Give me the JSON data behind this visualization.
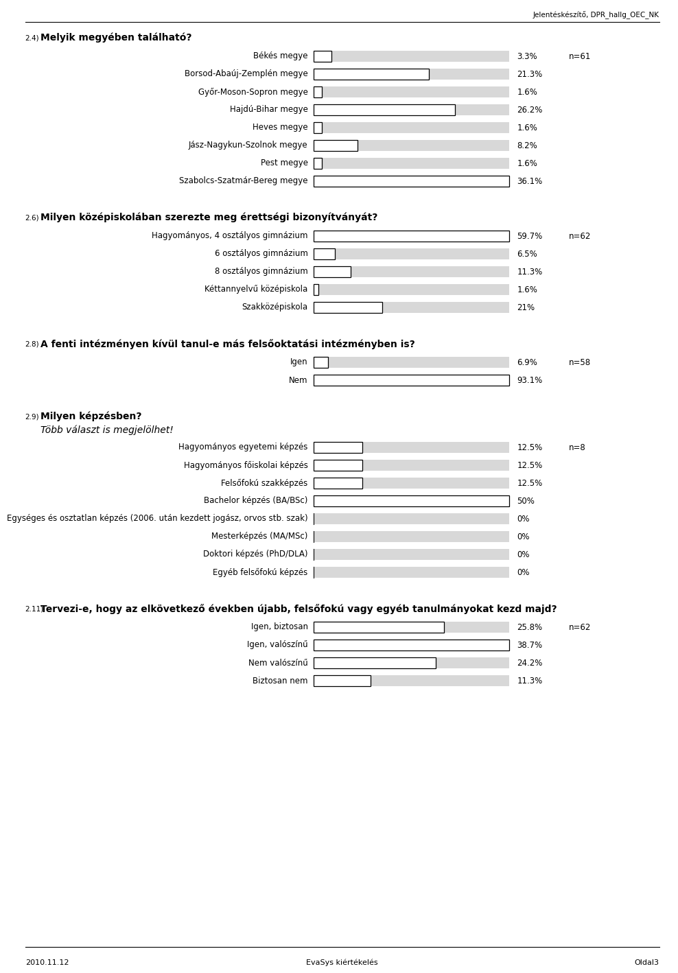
{
  "header_text": "Jelentéskészítő, DPR_hallg_OEC_NK",
  "footer_left": "2010.11.12",
  "footer_center": "EvaSys kiértékelés",
  "footer_right": "Oldal3",
  "bg_color": "#ffffff",
  "bar_bg_color": "#d8d8d8",
  "bar_fg_color": "#ffffff",
  "bar_border_color": "#000000",
  "sections": [
    {
      "id": "2.4",
      "superscript": "2.4)",
      "title": "Melyik megyében található?",
      "n_label": "n=61",
      "subtitle": null,
      "display_max": 36.1,
      "items": [
        {
          "label": "Békés megye",
          "value": 3.3,
          "pct": "3.3%"
        },
        {
          "label": "Borsod-Abaúj-Zemplén megye",
          "value": 21.3,
          "pct": "21.3%"
        },
        {
          "label": "Győr-Moson-Sopron megye",
          "value": 1.6,
          "pct": "1.6%"
        },
        {
          "label": "Hajdú-Bihar megye",
          "value": 26.2,
          "pct": "26.2%"
        },
        {
          "label": "Heves megye",
          "value": 1.6,
          "pct": "1.6%"
        },
        {
          "label": "Jász-Nagykun-Szolnok megye",
          "value": 8.2,
          "pct": "8.2%"
        },
        {
          "label": "Pest megye",
          "value": 1.6,
          "pct": "1.6%"
        },
        {
          "label": "Szabolcs-Szatmár-Bereg megye",
          "value": 36.1,
          "pct": "36.1%"
        }
      ]
    },
    {
      "id": "2.6",
      "superscript": "2.6)",
      "title": "Milyen középiskolában szerezte meg érettségi bizonyítványát?",
      "n_label": "n=62",
      "subtitle": null,
      "display_max": 59.7,
      "items": [
        {
          "label": "Hagyományos, 4 osztályos gimnázium",
          "value": 59.7,
          "pct": "59.7%"
        },
        {
          "label": "6 osztályos gimnázium",
          "value": 6.5,
          "pct": "6.5%"
        },
        {
          "label": "8 osztályos gimnázium",
          "value": 11.3,
          "pct": "11.3%"
        },
        {
          "label": "Kéttannyelvű középiskola",
          "value": 1.6,
          "pct": "1.6%"
        },
        {
          "label": "Szakközépiskola",
          "value": 21.0,
          "pct": "21%"
        }
      ]
    },
    {
      "id": "2.8",
      "superscript": "2.8)",
      "title": "A fenti intézményen kívül tanul-e más felsőoktatási intézményben is?",
      "n_label": "n=58",
      "subtitle": null,
      "display_max": 93.1,
      "items": [
        {
          "label": "Igen",
          "value": 6.9,
          "pct": "6.9%"
        },
        {
          "label": "Nem",
          "value": 93.1,
          "pct": "93.1%"
        }
      ]
    },
    {
      "id": "2.9",
      "superscript": "2.9)",
      "title": "Milyen képzésben?",
      "subtitle": "Több választ is megjelölhet!",
      "n_label": "n=8",
      "display_max": 50.0,
      "items": [
        {
          "label": "Hagyományos egyetemi képzés",
          "value": 12.5,
          "pct": "12.5%"
        },
        {
          "label": "Hagyományos főiskolai képzés",
          "value": 12.5,
          "pct": "12.5%"
        },
        {
          "label": "Felsőfokú szakképzés",
          "value": 12.5,
          "pct": "12.5%"
        },
        {
          "label": "Bachelor képzés (BA/BSc)",
          "value": 50.0,
          "pct": "50%"
        },
        {
          "label": "Egységes és osztatlan képzés (2006. után kezdett jogász, orvos stb. szak)",
          "value": 0.0,
          "pct": "0%"
        },
        {
          "label": "Mesterképzés (MA/MSc)",
          "value": 0.0,
          "pct": "0%"
        },
        {
          "label": "Doktori képzés (PhD/DLA)",
          "value": 0.0,
          "pct": "0%"
        },
        {
          "label": "Egyéb felsőfokú képzés",
          "value": 0.0,
          "pct": "0%"
        }
      ]
    },
    {
      "id": "2.11",
      "superscript": "2.11)",
      "title": "Tervezi-e, hogy az elkövetkező években újabb, felsőfokú vagy egyéb tanulmányokat kezd majd?",
      "n_label": "n=62",
      "subtitle": null,
      "display_max": 38.7,
      "items": [
        {
          "label": "Igen, biztosan",
          "value": 25.8,
          "pct": "25.8%"
        },
        {
          "label": "Igen, valószínű",
          "value": 38.7,
          "pct": "38.7%"
        },
        {
          "label": "Nem valószínű",
          "value": 24.2,
          "pct": "24.2%"
        },
        {
          "label": "Biztosan nem",
          "value": 11.3,
          "pct": "11.3%"
        }
      ]
    }
  ]
}
